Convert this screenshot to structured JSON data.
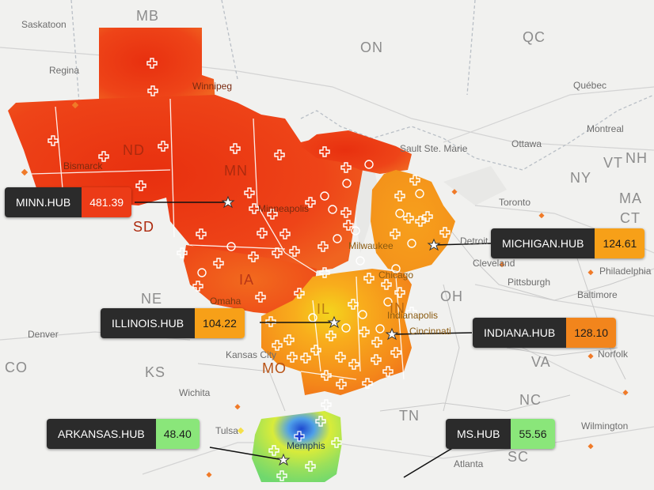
{
  "colors": {
    "base_map": "#f1f1ef",
    "hot": "#ec3b17",
    "warm": "#f37a14",
    "mid": "#f8a41a",
    "yellow": "#f2d41b",
    "green": "#8cdf64",
    "cold": "#1f4ad0",
    "label_bg": "#2b2b2b",
    "border_line": "#b9bfc6",
    "road_line": "#d3d3d3",
    "bright_border": "#ffffff"
  },
  "map": {
    "regions": [
      "MB",
      "ON",
      "QC",
      "ND",
      "MN",
      "SD",
      "IA",
      "NE",
      "KS",
      "MO",
      "IL",
      "IN",
      "OH",
      "NY",
      "VT",
      "NH",
      "MA",
      "CT",
      "VA",
      "NC",
      "TN",
      "SC",
      "CO"
    ],
    "places": [
      "Saskatoon",
      "Regina",
      "Winnipeg",
      "Bismarck",
      "Minneapolis",
      "Sault Ste. Marie",
      "Ottawa",
      "Montreal",
      "Québec",
      "Toronto",
      "Detroit",
      "Cleveland",
      "Pittsburgh",
      "Philadelphia",
      "Baltimore",
      "Chicago",
      "Milwaukee",
      "Indianapolis",
      "Cincinnati",
      "Omaha",
      "Kansas City",
      "Denver",
      "Wichita",
      "Tulsa",
      "Memphis",
      "Atlanta",
      "Wilmington",
      "Norfolk"
    ]
  },
  "hubs": [
    {
      "name": "MINN.HUB",
      "price": "481.39",
      "color": "#ec3b17"
    },
    {
      "name": "MICHIGAN.HUB",
      "price": "124.61",
      "color": "#f7a018"
    },
    {
      "name": "ILLINOIS.HUB",
      "price": "104.22",
      "color": "#f7a018"
    },
    {
      "name": "INDIANA.HUB",
      "price": "128.10",
      "color": "#f2851c"
    },
    {
      "name": "ARKANSAS.HUB",
      "price": "48.40",
      "color": "#8ae67a"
    },
    {
      "name": "MS.HUB",
      "price": "55.56",
      "color": "#8ae67a"
    }
  ]
}
